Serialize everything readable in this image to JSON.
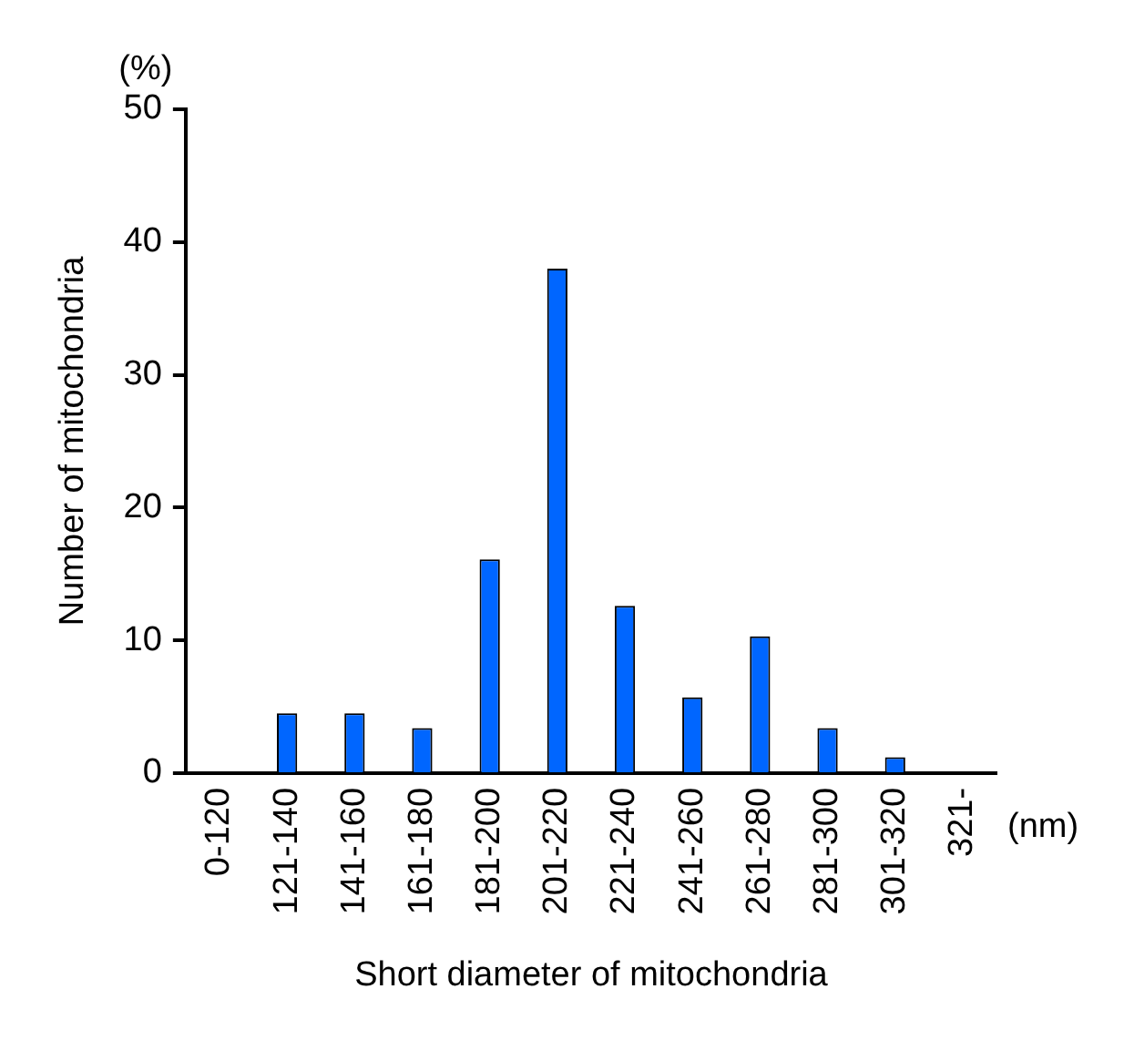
{
  "chart_data": {
    "type": "bar",
    "xlabel": "Short diameter of mitochondria",
    "ylabel": "Number of mitochondria",
    "categories": [
      "0-120",
      "121-140",
      "141-160",
      "161-180",
      "181-200",
      "201-220",
      "221-240",
      "241-260",
      "261-280",
      "281-300",
      "301-320",
      "321-"
    ],
    "values": [
      0,
      4.5,
      4.5,
      3.4,
      16.1,
      38.0,
      12.6,
      5.7,
      10.3,
      3.4,
      1.2,
      0
    ],
    "color": "#0066ff",
    "ylim": [
      0,
      50
    ],
    "yticks": [
      0,
      10,
      20,
      30,
      40,
      50
    ],
    "grid": false,
    "legend": false,
    "annotations": [
      "(%)",
      "(nm)"
    ]
  }
}
